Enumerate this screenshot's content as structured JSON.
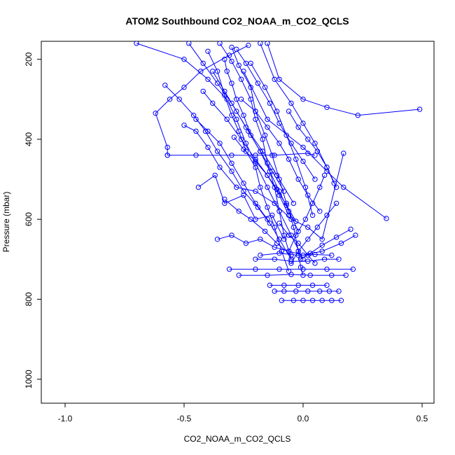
{
  "chart_data": {
    "type": "scatter",
    "title": "ATOM2 Southbound CO2_NOAA_m_CO2_QCLS",
    "xlabel": "CO2_NOAA_m_CO2_QCLS",
    "ylabel": "Pressure (mbar)",
    "xlim": [
      -1.1,
      0.55
    ],
    "ylim": [
      1060,
      155
    ],
    "y_inverted": true,
    "x_ticks": [
      -1.0,
      -0.5,
      0.0,
      0.5
    ],
    "x_tick_labels": [
      "-1.0",
      "-0.5",
      "0.0",
      "0.5"
    ],
    "y_ticks": [
      200,
      400,
      600,
      800,
      1000
    ],
    "y_tick_labels": [
      "200",
      "400",
      "600",
      "800",
      "1000"
    ],
    "grid": false,
    "marker": "open-circle",
    "connected_by_lines": true,
    "color": "#0000ff",
    "series": [
      {
        "x": [
          -0.23,
          -0.31,
          -0.43,
          -0.5,
          -0.56,
          -0.62,
          -0.57,
          -0.57
        ],
        "y": [
          165,
          190,
          230,
          270,
          300,
          335,
          420,
          440
        ]
      },
      {
        "x": [
          -0.3,
          -0.27,
          -0.22,
          -0.2,
          -0.16,
          -0.13,
          -0.1,
          -0.07,
          -0.04,
          -0.02,
          -0.01,
          0.0
        ],
        "y": [
          170,
          215,
          270,
          330,
          390,
          440,
          500,
          560,
          620,
          680,
          720,
          740
        ]
      },
      {
        "x": [
          -0.35,
          -0.3,
          -0.26,
          -0.22,
          -0.2,
          -0.17,
          -0.15,
          -0.12,
          -0.1,
          -0.08,
          -0.05
        ],
        "y": [
          160,
          205,
          250,
          300,
          350,
          400,
          460,
          520,
          580,
          640,
          700
        ]
      },
      {
        "x": [
          -0.4,
          -0.36,
          -0.33,
          -0.3,
          -0.27,
          -0.24,
          -0.2,
          -0.18,
          -0.15,
          -0.12,
          -0.09,
          -0.06
        ],
        "y": [
          180,
          230,
          290,
          340,
          380,
          430,
          470,
          520,
          570,
          620,
          680,
          730
        ]
      },
      {
        "x": [
          -0.7,
          -0.5,
          -0.4,
          -0.32,
          -0.28,
          -0.24,
          -0.2,
          -0.15,
          -0.1,
          -0.05,
          0.0
        ],
        "y": [
          160,
          200,
          250,
          300,
          350,
          410,
          460,
          520,
          580,
          640,
          700
        ]
      },
      {
        "x": [
          -0.15,
          -0.1,
          0.0,
          0.1,
          0.23,
          0.49
        ],
        "y": [
          160,
          250,
          300,
          320,
          340,
          325
        ]
      },
      {
        "x": [
          -0.25,
          -0.15,
          0.0,
          0.1,
          0.17,
          0.35
        ],
        "y": [
          230,
          350,
          420,
          480,
          520,
          598
        ]
      },
      {
        "x": [
          -0.5,
          -0.45,
          -0.4,
          -0.35,
          -0.28,
          -0.2,
          -0.12,
          -0.05,
          0.02,
          0.08,
          0.17
        ],
        "y": [
          365,
          380,
          420,
          470,
          520,
          530,
          560,
          600,
          620,
          650,
          435
        ]
      },
      {
        "x": [
          -0.57,
          -0.45,
          -0.3,
          -0.2,
          -0.12,
          0.02,
          0.05
        ],
        "y": [
          440,
          440,
          440,
          440,
          440,
          435,
          440
        ]
      },
      {
        "x": [
          -0.18,
          -0.12,
          -0.05,
          0.0,
          0.05,
          0.1,
          0.14
        ],
        "y": [
          160,
          250,
          310,
          360,
          410,
          470,
          520
        ]
      },
      {
        "x": [
          -0.45,
          -0.4,
          -0.35,
          -0.3,
          -0.25,
          -0.2,
          -0.15,
          -0.1,
          -0.05
        ],
        "y": [
          350,
          380,
          410,
          460,
          510,
          560,
          600,
          650,
          700
        ]
      },
      {
        "x": [
          -0.33,
          -0.32,
          -0.3,
          -0.28,
          -0.25,
          -0.22,
          -0.18,
          -0.14,
          -0.1,
          -0.06,
          -0.02
        ],
        "y": [
          200,
          230,
          260,
          300,
          340,
          390,
          430,
          480,
          530,
          580,
          630
        ]
      },
      {
        "x": [
          -0.58,
          -0.52,
          -0.46,
          -0.41,
          -0.36,
          -0.3,
          -0.25,
          -0.19,
          -0.14
        ],
        "y": [
          265,
          300,
          340,
          380,
          430,
          480,
          530,
          570,
          610
        ]
      },
      {
        "x": [
          -0.28,
          -0.24,
          -0.19,
          -0.14,
          -0.1,
          -0.05,
          0.0,
          0.05
        ],
        "y": [
          175,
          210,
          260,
          310,
          360,
          410,
          455,
          500
        ]
      },
      {
        "x": [
          -0.44,
          -0.37,
          -0.33,
          -0.25,
          -0.2,
          -0.13,
          -0.08
        ],
        "y": [
          520,
          490,
          560,
          540,
          600,
          590,
          650
        ]
      },
      {
        "x": [
          -0.36,
          -0.3,
          -0.24,
          -0.18,
          -0.12,
          -0.06,
          0.0,
          0.08,
          0.16,
          0.22
        ],
        "y": [
          650,
          640,
          660,
          650,
          670,
          680,
          690,
          680,
          660,
          640
        ]
      },
      {
        "x": [
          -0.31,
          -0.2,
          -0.1,
          0.0,
          0.1,
          0.21
        ],
        "y": [
          725,
          725,
          725,
          725,
          725,
          725
        ]
      },
      {
        "x": [
          -0.27,
          -0.15,
          -0.05,
          0.03,
          0.12,
          0.18
        ],
        "y": [
          740,
          740,
          738,
          740,
          740,
          740
        ]
      },
      {
        "x": [
          -0.12,
          -0.08,
          -0.03,
          0.02,
          0.07,
          0.11,
          0.15
        ],
        "y": [
          780,
          780,
          780,
          780,
          780,
          780,
          780
        ]
      },
      {
        "x": [
          -0.09,
          -0.04,
          0.0,
          0.04,
          0.08,
          0.12,
          0.16
        ],
        "y": [
          803,
          803,
          803,
          803,
          803,
          803,
          803
        ]
      },
      {
        "x": [
          -0.14,
          -0.08,
          -0.02,
          0.04,
          0.1
        ],
        "y": [
          765,
          765,
          765,
          765,
          765
        ]
      },
      {
        "x": [
          -0.2,
          -0.12,
          -0.05,
          0.02,
          0.09,
          0.15
        ],
        "y": [
          700,
          700,
          705,
          705,
          700,
          700
        ]
      },
      {
        "x": [
          -0.18,
          -0.1,
          -0.02,
          0.05,
          0.12
        ],
        "y": [
          690,
          685,
          690,
          688,
          690
        ]
      },
      {
        "x": [
          -0.22,
          -0.16,
          -0.11,
          -0.07,
          -0.03,
          0.01,
          0.04
        ],
        "y": [
          210,
          270,
          330,
          390,
          450,
          520,
          590
        ]
      },
      {
        "x": [
          -0.48,
          -0.42,
          -0.36,
          -0.3,
          -0.24,
          -0.17,
          -0.11,
          -0.04
        ],
        "y": [
          160,
          210,
          260,
          310,
          370,
          430,
          490,
          560
        ]
      },
      {
        "x": [
          -0.26,
          -0.2,
          -0.15,
          -0.1,
          -0.06,
          -0.02,
          0.02,
          0.07
        ],
        "y": [
          300,
          330,
          370,
          410,
          450,
          500,
          540,
          580
        ]
      },
      {
        "x": [
          0.09,
          0.07,
          0.04,
          0.01,
          -0.03,
          -0.06
        ],
        "y": [
          490,
          520,
          560,
          600,
          640,
          680
        ]
      },
      {
        "x": [
          -0.38,
          -0.33,
          -0.28,
          -0.23,
          -0.18,
          -0.13,
          -0.08
        ],
        "y": [
          230,
          280,
          330,
          380,
          430,
          480,
          530
        ]
      },
      {
        "x": [
          0.14,
          0.1,
          0.06,
          0.02,
          -0.02,
          -0.05
        ],
        "y": [
          560,
          590,
          620,
          650,
          680,
          710
        ]
      },
      {
        "x": [
          0.2,
          0.14,
          0.08,
          0.03,
          -0.01
        ],
        "y": [
          625,
          645,
          665,
          685,
          700
        ]
      },
      {
        "x": [
          -0.29,
          -0.25,
          -0.2,
          -0.15,
          -0.11,
          -0.07,
          -0.03
        ],
        "y": [
          395,
          425,
          455,
          490,
          525,
          565,
          605
        ]
      },
      {
        "x": [
          -0.42,
          -0.38,
          -0.32,
          -0.26,
          -0.2,
          -0.15,
          -0.1,
          -0.06
        ],
        "y": [
          280,
          310,
          350,
          400,
          450,
          490,
          540,
          590
        ]
      },
      {
        "x": [
          -0.06,
          -0.02,
          0.02,
          0.06,
          0.1,
          0.13
        ],
        "y": [
          330,
          370,
          400,
          430,
          470,
          510
        ]
      },
      {
        "x": [
          -0.1,
          -0.06,
          -0.02,
          0.02,
          0.05
        ],
        "y": [
          610,
          640,
          660,
          690,
          710
        ]
      },
      {
        "x": [
          -0.33,
          -0.27,
          -0.22,
          -0.16,
          -0.11,
          -0.05
        ],
        "y": [
          550,
          580,
          600,
          630,
          660,
          690
        ]
      }
    ]
  }
}
